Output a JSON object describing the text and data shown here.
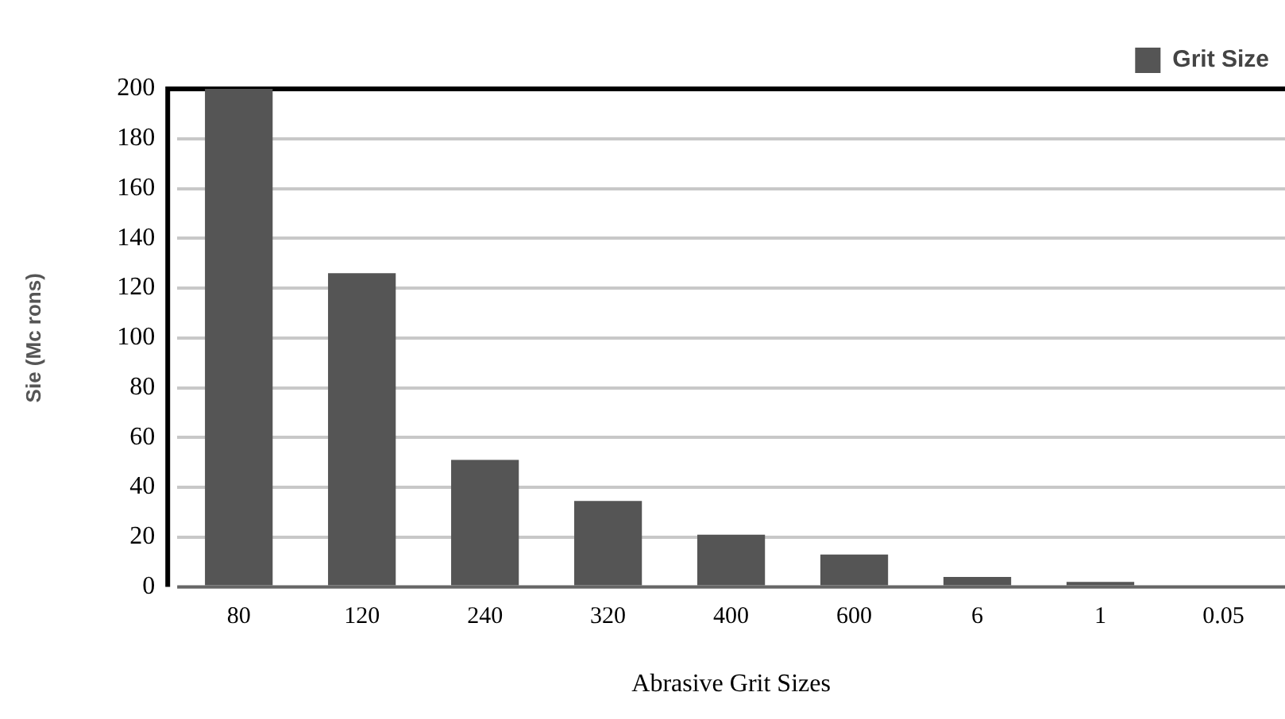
{
  "chart_data": {
    "type": "bar",
    "xlabel": "Abrasive Grit Sizes",
    "ylabel": "Sie (Mc rons)",
    "categories": [
      "80",
      "120",
      "240",
      "320",
      "400",
      "600",
      "6",
      "1",
      "0.05"
    ],
    "series": [
      {
        "name": "Grit Size",
        "color": "#555555",
        "values": [
          200,
          126,
          51,
          34.5,
          21,
          13,
          4,
          2,
          0
        ]
      }
    ],
    "ylim": [
      0,
      200
    ],
    "yticks": [
      0,
      20,
      40,
      60,
      80,
      100,
      120,
      140,
      160,
      180,
      200
    ],
    "grid": "y",
    "legend": "top right"
  }
}
